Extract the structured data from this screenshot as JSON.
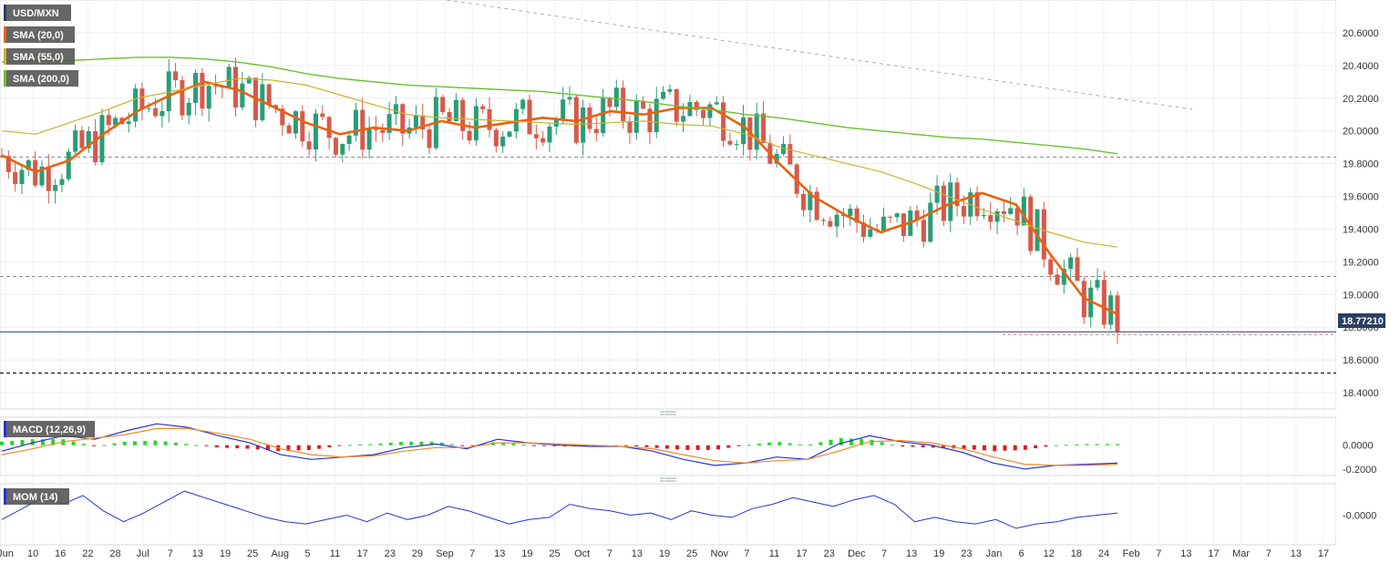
{
  "main": {
    "symbol": "USD/MXN",
    "last_price": "18.77210",
    "last_value": 18.7721,
    "overlays": [
      {
        "label": "SMA (20,0)",
        "color": "#e8620e"
      },
      {
        "label": "SMA (55,0)",
        "color": "#c9b22e"
      },
      {
        "label": "SMA (200,0)",
        "color": "#6cbf2f"
      }
    ],
    "y_ticks": [
      "20.6000",
      "20.4000",
      "20.2000",
      "20.0000",
      "19.8000",
      "19.6000",
      "19.4000",
      "19.2000",
      "19.0000",
      "18.8000",
      "18.6000",
      "18.4000"
    ],
    "ylim": [
      18.3,
      20.8
    ],
    "h_levels": [
      19.84,
      19.11,
      18.52
    ],
    "colors": {
      "bull": "#2a9d76",
      "bear": "#d65a4a",
      "price_line": "#1f3a66",
      "tag_bg": "#2b3e63"
    }
  },
  "macd": {
    "label": "MACD (12,26,9)",
    "y_ticks": [
      "0.0000",
      "-0.2000"
    ],
    "ylim": [
      -0.24,
      0.22
    ],
    "colors": {
      "macd": "#2433d6",
      "signal": "#f08a2a",
      "hist_pos": "#28d228",
      "hist_neg": "#e01b1b"
    }
  },
  "mom": {
    "label": "MOM (14)",
    "y_ticks": [
      "-0.0000"
    ],
    "color": "#2433d6"
  },
  "x_axis": {
    "ticks": [
      "Jun",
      "10",
      "16",
      "22",
      "28",
      "Jul",
      "7",
      "13",
      "19",
      "25",
      "Aug",
      "5",
      "11",
      "17",
      "23",
      "29",
      "Sep",
      "7",
      "13",
      "19",
      "25",
      "Oct",
      "7",
      "13",
      "19",
      "25",
      "Nov",
      "7",
      "11",
      "17",
      "23",
      "Dec",
      "7",
      "13",
      "19",
      "23",
      "Jan",
      "6",
      "12",
      "18",
      "24",
      "Feb",
      "7",
      "13",
      "17",
      "Mar",
      "7",
      "13",
      "17"
    ]
  },
  "chart_data": [
    {
      "type": "candlestick",
      "title": "USD/MXN",
      "ylim": [
        18.3,
        20.8
      ],
      "last_value": 18.7721,
      "series": [
        {
          "name": "SMA (20,0)",
          "values": [
            19.85,
            19.75,
            19.82,
            19.98,
            20.12,
            20.22,
            20.3,
            20.25,
            20.15,
            20.05,
            19.98,
            20.02,
            20.0,
            20.06,
            20.02,
            20.05,
            20.08,
            20.06,
            20.12,
            20.1,
            20.14,
            20.14,
            20.02,
            19.8,
            19.6,
            19.48,
            19.38,
            19.45,
            19.55,
            19.62,
            19.55,
            19.25,
            18.98,
            18.88
          ]
        },
        {
          "name": "SMA (55,0)",
          "values": [
            20.0,
            19.98,
            20.05,
            20.12,
            20.2,
            20.24,
            20.28,
            20.32,
            20.31,
            20.28,
            20.22,
            20.16,
            20.1,
            20.08,
            20.07,
            20.06,
            20.05,
            20.04,
            20.05,
            20.06,
            20.04,
            20.03,
            19.98,
            19.9,
            19.85,
            19.8,
            19.75,
            19.68,
            19.6,
            19.52,
            19.45,
            19.38,
            19.32,
            19.29
          ]
        },
        {
          "name": "SMA (200,0)",
          "values": [
            20.42,
            20.43,
            20.43,
            20.44,
            20.45,
            20.45,
            20.44,
            20.42,
            20.39,
            20.35,
            20.32,
            20.3,
            20.28,
            20.27,
            20.26,
            20.25,
            20.24,
            20.22,
            20.2,
            20.18,
            20.15,
            20.13,
            20.1,
            20.08,
            20.05,
            20.02,
            20.0,
            19.98,
            19.96,
            19.95,
            19.93,
            19.91,
            19.89,
            19.86
          ]
        }
      ],
      "h_levels": [
        19.84,
        19.11,
        18.52
      ]
    },
    {
      "type": "line",
      "title": "MACD (12,26,9)",
      "ylim": [
        -0.24,
        0.22
      ],
      "series": [
        {
          "name": "MACD",
          "values": [
            -0.05,
            0.02,
            0.08,
            0.05,
            0.12,
            0.18,
            0.15,
            0.08,
            0.02,
            -0.08,
            -0.12,
            -0.1,
            -0.08,
            -0.02,
            0.01,
            -0.03,
            0.05,
            0.02,
            0.0,
            -0.01,
            -0.01,
            -0.05,
            -0.12,
            -0.17,
            -0.15,
            -0.1,
            -0.12,
            0.01,
            0.08,
            0.03,
            0.0,
            -0.06,
            -0.15,
            -0.2,
            -0.17,
            -0.16,
            -0.15
          ]
        },
        {
          "name": "Signal",
          "values": [
            -0.08,
            -0.03,
            0.03,
            0.06,
            0.09,
            0.14,
            0.14,
            0.1,
            0.05,
            -0.03,
            -0.08,
            -0.1,
            -0.09,
            -0.05,
            -0.02,
            -0.02,
            0.02,
            0.02,
            0.01,
            0.0,
            -0.01,
            -0.03,
            -0.08,
            -0.13,
            -0.15,
            -0.13,
            -0.12,
            -0.05,
            0.03,
            0.04,
            0.02,
            -0.03,
            -0.1,
            -0.16,
            -0.17,
            -0.17,
            -0.16
          ]
        }
      ]
    },
    {
      "type": "line",
      "title": "MOM (14)",
      "series": [
        {
          "name": "MOM (14)",
          "values": [
            -0.2,
            0.3,
            0.8,
            0.5,
            0.9,
            0.2,
            -0.3,
            0.1,
            0.6,
            1.1,
            0.8,
            0.5,
            0.2,
            -0.1,
            -0.3,
            -0.4,
            -0.2,
            0.0,
            -0.3,
            0.1,
            -0.2,
            0.0,
            0.4,
            0.2,
            -0.1,
            -0.4,
            -0.2,
            -0.1,
            0.5,
            0.3,
            0.2,
            0.0,
            0.1,
            -0.2,
            0.2,
            0.0,
            -0.1,
            0.3,
            0.5,
            0.8,
            0.6,
            0.4,
            0.7,
            0.9,
            0.5,
            -0.3,
            -0.1,
            -0.3,
            -0.4,
            -0.2,
            -0.6,
            -0.4,
            -0.3,
            -0.1,
            0.0,
            0.1
          ]
        }
      ]
    }
  ]
}
